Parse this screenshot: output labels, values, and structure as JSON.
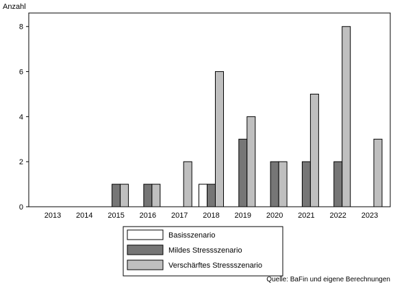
{
  "chart_data": {
    "type": "bar",
    "ylabel": "Anzahl",
    "ylim": [
      0,
      8.6
    ],
    "yticks": [
      0,
      2,
      4,
      6,
      8
    ],
    "categories": [
      "2013",
      "2014",
      "2015",
      "2016",
      "2017",
      "2018",
      "2019",
      "2020",
      "2021",
      "2022",
      "2023"
    ],
    "series": [
      {
        "name": "Basisszenario",
        "color": "#ffffff",
        "values": [
          0,
          0,
          0,
          0,
          0,
          1,
          0,
          0,
          0,
          0,
          0
        ]
      },
      {
        "name": "Mildes Stressszenario",
        "color": "#767676",
        "values": [
          0,
          0,
          1,
          1,
          0,
          1,
          3,
          2,
          2,
          2,
          0
        ]
      },
      {
        "name": "Verschärftes Stressszenario",
        "color": "#bfbfbf",
        "values": [
          0,
          0,
          1,
          1,
          2,
          6,
          4,
          2,
          5,
          8,
          3
        ]
      }
    ],
    "legend_position": "bottom-center",
    "source": "Quelle: BaFin und eigene Berechnungen"
  }
}
